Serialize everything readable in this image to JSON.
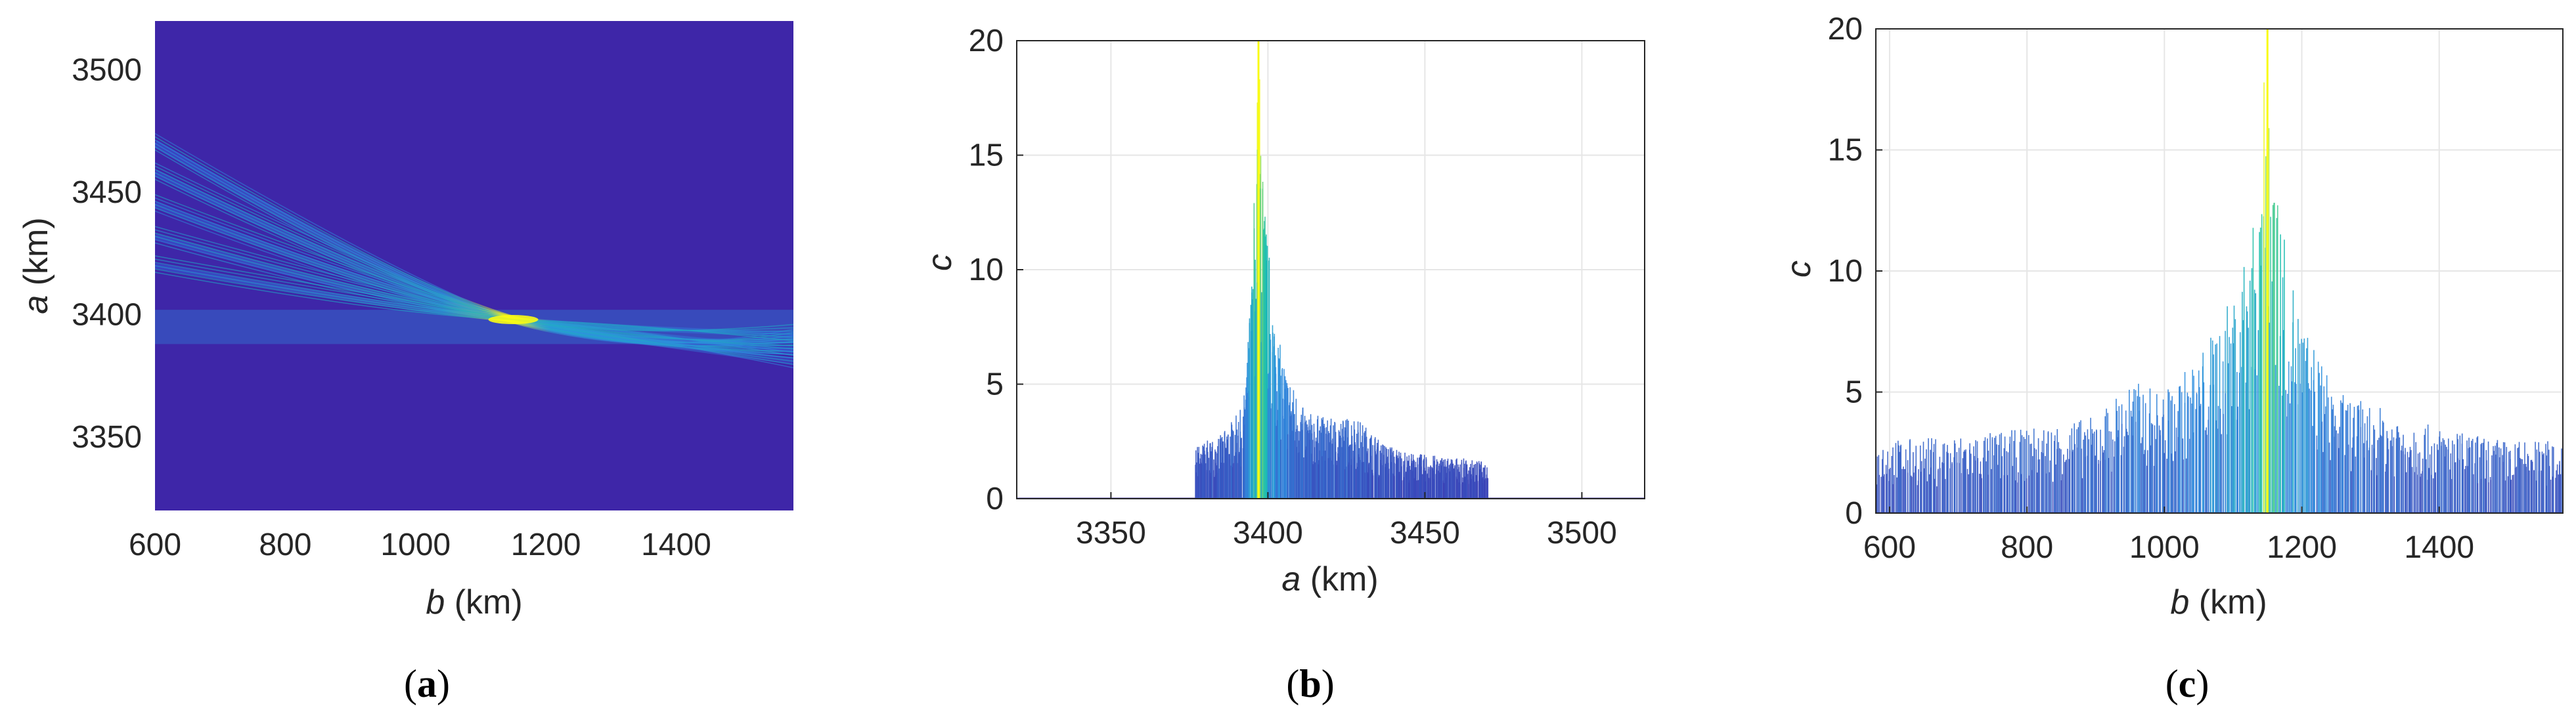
{
  "panels": [
    {
      "label_open": "(",
      "label_letter": "a",
      "label_close": ")"
    },
    {
      "label_open": "(",
      "label_letter": "b",
      "label_close": ")"
    },
    {
      "label_open": "(",
      "label_letter": "c",
      "label_close": ")"
    }
  ],
  "colors": {
    "background_field": "#3e26a8",
    "low": "#3e26a8",
    "mid": "#2e8ee0",
    "high_mid": "#17beb0",
    "high": "#f9fb15",
    "grid": "#e6e6e6",
    "axis": "#262626"
  },
  "chart_data": [
    {
      "type": "heatmap",
      "colormap": "parula",
      "xlabel_var": "b",
      "xlabel_unit": "(km)",
      "ylabel_var": "a",
      "ylabel_unit": "(km)",
      "xlim": [
        600,
        1580
      ],
      "ylim": [
        3320,
        3520
      ],
      "xticks": [
        "600",
        "800",
        "1000",
        "1200",
        "1400"
      ],
      "yticks": [
        "3350",
        "3400",
        "3450",
        "3500"
      ],
      "xtick_values": [
        600,
        800,
        1000,
        1200,
        1400
      ],
      "ytick_values": [
        3350,
        3400,
        3450,
        3500
      ],
      "grid": false,
      "peak": {
        "b": 1150,
        "a": 3398
      },
      "band_curves": [
        {
          "a_at_600": 3470,
          "a_at_1580": 3390
        },
        {
          "a_at_600": 3458,
          "a_at_1580": 3385
        },
        {
          "a_at_600": 3445,
          "a_at_1580": 3381
        },
        {
          "a_at_600": 3432,
          "a_at_1580": 3386
        },
        {
          "a_at_600": 3420,
          "a_at_1580": 3392
        }
      ],
      "horizontal_band": {
        "a_from": 3388,
        "a_to": 3402,
        "b_from": 600,
        "b_to": 1580
      }
    },
    {
      "type": "line",
      "xlabel_var": "a",
      "xlabel_unit": "(km)",
      "ylabel_var": "c",
      "ylabel_unit": "",
      "xlim": [
        3320,
        3520
      ],
      "ylim": [
        0,
        20
      ],
      "xticks": [
        "3350",
        "3400",
        "3450",
        "3500"
      ],
      "yticks": [
        "0",
        "5",
        "10",
        "15",
        "20"
      ],
      "xtick_values": [
        3350,
        3400,
        3450,
        3500
      ],
      "ytick_values": [
        0,
        5,
        10,
        15,
        20
      ],
      "grid": true,
      "support": [
        3377,
        3470
      ],
      "peak": {
        "a": 3397,
        "c": 20
      },
      "envelope": [
        {
          "a": 3377,
          "c": 2.3
        },
        {
          "a": 3385,
          "c": 2.8
        },
        {
          "a": 3392,
          "c": 4.0
        },
        {
          "a": 3395,
          "c": 10.0
        },
        {
          "a": 3397,
          "c": 20.0
        },
        {
          "a": 3399,
          "c": 13.0
        },
        {
          "a": 3402,
          "c": 8.0
        },
        {
          "a": 3406,
          "c": 5.5
        },
        {
          "a": 3412,
          "c": 3.8
        },
        {
          "a": 3420,
          "c": 3.5
        },
        {
          "a": 3428,
          "c": 3.6
        },
        {
          "a": 3436,
          "c": 2.5
        },
        {
          "a": 3445,
          "c": 2.0
        },
        {
          "a": 3460,
          "c": 1.8
        },
        {
          "a": 3470,
          "c": 1.6
        }
      ]
    },
    {
      "type": "line",
      "xlabel_var": "b",
      "xlabel_unit": "(km)",
      "ylabel_var": "c",
      "ylabel_unit": "",
      "xlim": [
        580,
        1580
      ],
      "ylim": [
        0,
        20
      ],
      "xticks": [
        "600",
        "800",
        "1000",
        "1200",
        "1400"
      ],
      "yticks": [
        "0",
        "5",
        "10",
        "15",
        "20"
      ],
      "xtick_values": [
        600,
        800,
        1000,
        1200,
        1400
      ],
      "ytick_values": [
        0,
        5,
        10,
        15,
        20
      ],
      "grid": true,
      "peak": {
        "b": 1150,
        "c": 20
      },
      "envelope": [
        {
          "b": 580,
          "c": 3.0
        },
        {
          "b": 700,
          "c": 3.2
        },
        {
          "b": 800,
          "c": 3.5
        },
        {
          "b": 900,
          "c": 4.0
        },
        {
          "b": 950,
          "c": 5.5
        },
        {
          "b": 1000,
          "c": 5.0
        },
        {
          "b": 1050,
          "c": 6.5
        },
        {
          "b": 1100,
          "c": 9.0
        },
        {
          "b": 1130,
          "c": 12.0
        },
        {
          "b": 1150,
          "c": 20.0
        },
        {
          "b": 1170,
          "c": 12.0
        },
        {
          "b": 1200,
          "c": 8.0
        },
        {
          "b": 1250,
          "c": 5.0
        },
        {
          "b": 1300,
          "c": 4.5
        },
        {
          "b": 1400,
          "c": 3.5
        },
        {
          "b": 1500,
          "c": 3.0
        },
        {
          "b": 1580,
          "c": 3.0
        }
      ]
    }
  ]
}
